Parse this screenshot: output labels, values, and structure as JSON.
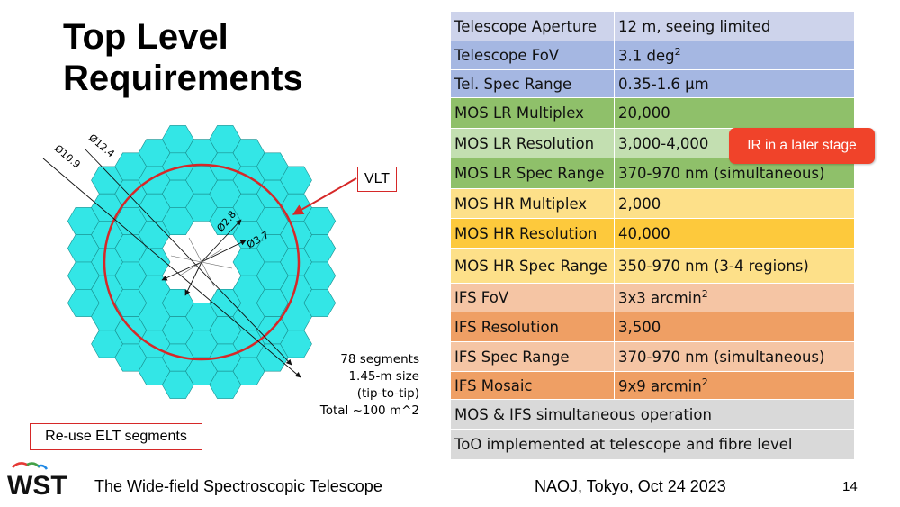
{
  "title_line1": "Top Level",
  "title_line2": "Requirements",
  "requirements": [
    {
      "label": "Telescope Aperture",
      "value": "12 m, seeing limited",
      "value_sup": "",
      "color": "#cdd3eb",
      "height": 33
    },
    {
      "label": "Telescope FoV",
      "value": "3.1 deg",
      "value_sup": "2",
      "color": "#a5b7e2",
      "height": 32
    },
    {
      "label": "Tel. Spec Range",
      "value": "0.35-1.6 µm",
      "value_sup": "",
      "color": "#a5b7e2",
      "height": 31
    },
    {
      "label": "MOS LR Multiplex",
      "value": "20,000",
      "value_sup": "",
      "color": "#8fc06a",
      "height": 34
    },
    {
      "label": "MOS LR Resolution",
      "value": "3,000-4,000",
      "value_sup": "",
      "color": "#c3dfb1",
      "height": 33
    },
    {
      "label": "MOS LR Spec Range",
      "value": "370-970 nm (simultaneous)",
      "value_sup": "",
      "color": "#8fc06a",
      "height": 34
    },
    {
      "label": "MOS HR Multiplex",
      "value": "2,000",
      "value_sup": "",
      "color": "#fde089",
      "height": 33
    },
    {
      "label": "MOS HR Resolution",
      "value": "40,000",
      "value_sup": "",
      "color": "#fdc93c",
      "height": 33
    },
    {
      "label": "MOS HR Spec Range",
      "value": "350-970 nm (3-4 regions)",
      "value_sup": "",
      "color": "#fde089",
      "height": 39
    },
    {
      "label": "IFS FoV",
      "value": "3x3 arcmin",
      "value_sup": "2",
      "color": "#f5c5a4",
      "height": 32
    },
    {
      "label": "IFS Resolution",
      "value": "3,500",
      "value_sup": "",
      "color": "#ef9f64",
      "height": 33
    },
    {
      "label": "IFS Spec Range",
      "value": "370-970 nm (simultaneous)",
      "value_sup": "",
      "color": "#f5c5a4",
      "height": 33
    },
    {
      "label": "IFS Mosaic",
      "value": "9x9 arcmin",
      "value_sup": "2",
      "color": "#ef9f64",
      "height": 31
    }
  ],
  "full_rows": [
    {
      "text": "MOS & IFS simultaneous operation",
      "color": "#d9d9d9",
      "height": 33
    },
    {
      "text": "ToO implemented at telescope and fibre level",
      "color": "#d9d9d9",
      "height": 34
    }
  ],
  "ir_note": "IR in a later stage",
  "diagram": {
    "vlt_label": "VLT",
    "dim_outer": "Ø12.4",
    "dim_inner": "Ø10.9",
    "dim_vlt": "Ø2.8",
    "dim_hole": "Ø3.7",
    "segment_note": [
      "78 segments",
      "1.45-m size",
      "(tip-to-tip)",
      "Total ~100 m^2"
    ],
    "segment_color": "#33e6e6",
    "vlt_color": "#d62828"
  },
  "reuse_label": "Re-use ELT segments",
  "logo_text": "WST",
  "footer_left": "The Wide-field Spectroscopic Telescope",
  "footer_center": "NAOJ, Tokyo, Oct 24 2023",
  "page_number": "14"
}
